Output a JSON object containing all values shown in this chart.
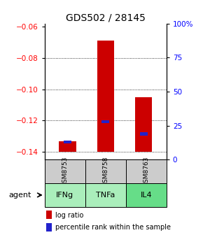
{
  "title": "GDS502 / 28145",
  "samples": [
    "GSM8753",
    "GSM8758",
    "GSM8763"
  ],
  "agents": [
    "IFNg",
    "TNFa",
    "IL4"
  ],
  "log_ratio_values": [
    -0.133,
    -0.069,
    -0.105
  ],
  "log_ratio_base": -0.14,
  "percentile_values": [
    0.13,
    0.28,
    0.19
  ],
  "ylim_left": [
    -0.145,
    -0.058
  ],
  "ylim_right": [
    0.0,
    1.0
  ],
  "left_yticks": [
    -0.14,
    -0.12,
    -0.1,
    -0.08,
    -0.06
  ],
  "right_yticks": [
    0.0,
    0.25,
    0.5,
    0.75,
    1.0
  ],
  "right_ytick_labels": [
    "0",
    "25",
    "50",
    "75",
    "100%"
  ],
  "bar_color": "#cc0000",
  "percentile_color": "#2222cc",
  "sample_bg": "#cccccc",
  "agent_bg_light": "#aaeebb",
  "agent_bg_dark": "#66dd88",
  "title_fontsize": 10,
  "tick_fontsize": 7.5,
  "legend_fontsize": 7,
  "agent_label": "agent"
}
